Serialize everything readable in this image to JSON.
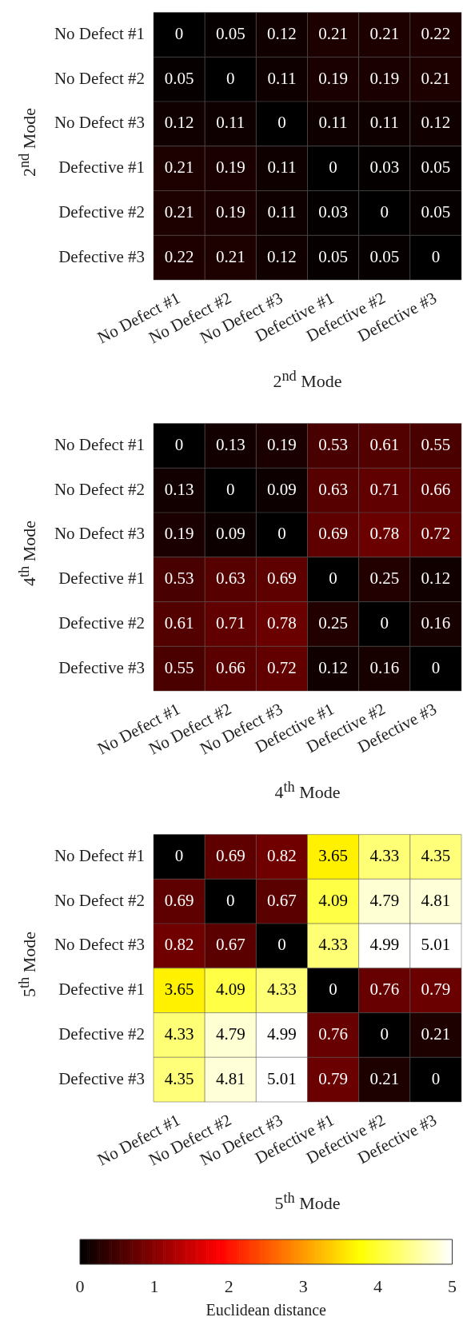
{
  "chart_data": [
    {
      "type": "heatmap",
      "xlabel": "2$^{nd}$ Mode",
      "ylabel": "2$^{nd}$ Mode",
      "categories": [
        "No Defect #1",
        "No Defect #2",
        "No Defect #3",
        "Defective #1",
        "Defective #2",
        "Defective #3"
      ],
      "y_categories": [
        "No Defect #1",
        "No Defect #2",
        "No Defect #3",
        "Defective #1",
        "Defective #2",
        "Defective #3"
      ],
      "cells": [
        [
          0,
          0.05,
          0.12,
          0.21,
          0.21,
          0.22
        ],
        [
          0.05,
          0,
          0.11,
          0.19,
          0.19,
          0.21
        ],
        [
          0.12,
          0.11,
          0,
          0.11,
          0.11,
          0.12
        ],
        [
          0.21,
          0.19,
          0.11,
          0,
          0.03,
          0.05
        ],
        [
          0.21,
          0.19,
          0.11,
          0.03,
          0,
          0.05
        ],
        [
          0.22,
          0.21,
          0.12,
          0.05,
          0.05,
          0
        ]
      ],
      "data_labels": true
    },
    {
      "type": "heatmap",
      "xlabel": "4$^{th}$ Mode",
      "ylabel": "4$^{th}$ Mode",
      "categories": [
        "No Defect #1",
        "No Defect #2",
        "No Defect #3",
        "Defective #1",
        "Defective #2",
        "Defective #3"
      ],
      "y_categories": [
        "No Defect #1",
        "No Defect #2",
        "No Defect #3",
        "Defective #1",
        "Defective #2",
        "Defective #3"
      ],
      "cells": [
        [
          0,
          0.13,
          0.19,
          0.53,
          0.61,
          0.55
        ],
        [
          0.13,
          0,
          0.09,
          0.63,
          0.71,
          0.66
        ],
        [
          0.19,
          0.09,
          0,
          0.69,
          0.78,
          0.72
        ],
        [
          0.53,
          0.63,
          0.69,
          0,
          0.25,
          0.12
        ],
        [
          0.61,
          0.71,
          0.78,
          0.25,
          0,
          0.16
        ],
        [
          0.55,
          0.66,
          0.72,
          0.12,
          0.16,
          0
        ]
      ],
      "data_labels": true
    },
    {
      "type": "heatmap",
      "xlabel": "5$^{th}$ Mode",
      "ylabel": "5$^{th}$ Mode",
      "categories": [
        "No Defect #1",
        "No Defect #2",
        "No Defect #3",
        "Defective #1",
        "Defective #2",
        "Defective #3"
      ],
      "y_categories": [
        "No Defect #1",
        "No Defect #2",
        "No Defect #3",
        "Defective #1",
        "Defective #2",
        "Defective #3"
      ],
      "cells": [
        [
          0,
          0.69,
          0.82,
          3.65,
          4.33,
          4.35
        ],
        [
          0.69,
          0,
          0.67,
          4.09,
          4.79,
          4.81
        ],
        [
          0.82,
          0.67,
          0,
          4.33,
          4.99,
          5.01
        ],
        [
          3.65,
          4.09,
          4.33,
          0,
          0.76,
          0.79
        ],
        [
          4.33,
          4.79,
          4.99,
          0.76,
          0,
          0.21
        ],
        [
          4.35,
          4.81,
          5.01,
          0.79,
          0.21,
          0
        ]
      ],
      "clim": [
        0,
        5
      ],
      "cticks": [
        0,
        1,
        2,
        3,
        4,
        5
      ],
      "clabel": "Euclidean distance",
      "data_labels": true
    }
  ]
}
